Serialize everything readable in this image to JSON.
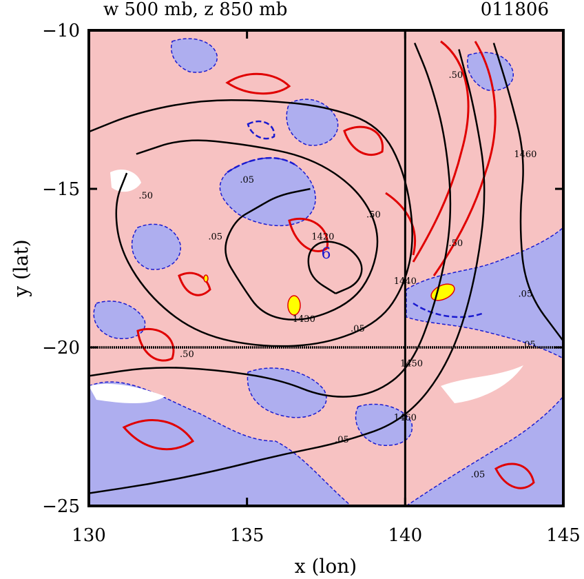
{
  "header": {
    "left_title": "w 500 mb, z 850 mb",
    "right_title": "011806"
  },
  "chart_data": {
    "type": "contour",
    "xlabel": "x (lon)",
    "ylabel": "y (lat)",
    "xlim": [
      130,
      145
    ],
    "ylim": [
      -25,
      -10
    ],
    "xticks": [
      130,
      135,
      140,
      145
    ],
    "yticks": [
      -10,
      -15,
      -20,
      -25
    ],
    "crosshair": {
      "lon": 140,
      "lat": -20
    },
    "colors": {
      "ascent_fill": "#f7c2c2",
      "descent_fill": "#aeaeef",
      "strong_ascent_fill": "#ffff00",
      "w_contour_positive": "#e00000",
      "w_contour_negative": "#1a1ad0",
      "z_contour": "#000000"
    },
    "z850_contours": [
      {
        "level": 1420,
        "points": [
          [
            137.8,
            -18.3
          ],
          [
            138.5,
            -18.0
          ],
          [
            138.7,
            -17.4
          ],
          [
            138.2,
            -16.8
          ],
          [
            137.4,
            -16.6
          ],
          [
            136.9,
            -17.0
          ],
          [
            137.0,
            -17.8
          ],
          [
            137.8,
            -18.3
          ]
        ]
      },
      {
        "level": 1430,
        "points": [
          [
            131.5,
            -13.9
          ],
          [
            133.0,
            -13.4
          ],
          [
            135.0,
            -13.6
          ],
          [
            137.0,
            -14.0
          ],
          [
            138.5,
            -15.0
          ],
          [
            139.2,
            -16.3
          ],
          [
            139.0,
            -17.6
          ],
          [
            138.3,
            -18.6
          ],
          [
            136.8,
            -19.2
          ],
          [
            135.5,
            -19.0
          ],
          [
            134.8,
            -18.0
          ],
          [
            134.2,
            -17.0
          ],
          [
            134.6,
            -16.0
          ],
          [
            135.3,
            -15.6
          ],
          [
            136.0,
            -15.2
          ],
          [
            137.0,
            -15.0
          ]
        ]
      },
      {
        "level": 1440,
        "points": [
          [
            130.0,
            -13.2
          ],
          [
            131.5,
            -12.6
          ],
          [
            133.5,
            -12.2
          ],
          [
            135.5,
            -12.2
          ],
          [
            137.5,
            -12.4
          ],
          [
            139.2,
            -13.0
          ],
          [
            140.0,
            -14.5
          ],
          [
            140.3,
            -16.5
          ],
          [
            140.0,
            -18.0
          ],
          [
            139.2,
            -19.2
          ],
          [
            137.5,
            -19.9
          ],
          [
            135.5,
            -20.0
          ],
          [
            133.5,
            -19.6
          ],
          [
            132.0,
            -18.5
          ],
          [
            131.0,
            -17.0
          ],
          [
            130.8,
            -15.5
          ],
          [
            131.2,
            -14.5
          ]
        ]
      },
      {
        "level": 1450,
        "points": [
          [
            130.0,
            -20.9
          ],
          [
            132.0,
            -20.6
          ],
          [
            134.0,
            -20.7
          ],
          [
            136.0,
            -21.0
          ],
          [
            137.5,
            -21.6
          ],
          [
            139.0,
            -21.5
          ],
          [
            140.2,
            -20.6
          ],
          [
            141.0,
            -18.5
          ],
          [
            141.5,
            -16.0
          ],
          [
            141.3,
            -13.5
          ],
          [
            140.8,
            -11.6
          ],
          [
            140.3,
            -10.4
          ]
        ]
      },
      {
        "level": 1460,
        "points": [
          [
            130.0,
            -24.6
          ],
          [
            132.0,
            -24.3
          ],
          [
            134.0,
            -23.9
          ],
          [
            136.0,
            -23.4
          ],
          [
            138.0,
            -23.0
          ],
          [
            140.0,
            -22.3
          ],
          [
            141.4,
            -20.5
          ],
          [
            142.2,
            -18.0
          ],
          [
            142.6,
            -15.0
          ],
          [
            142.2,
            -12.5
          ],
          [
            141.7,
            -10.6
          ]
        ]
      },
      {
        "level": 1460,
        "points": [
          [
            145.0,
            -19.8
          ],
          [
            143.8,
            -18.2
          ],
          [
            143.6,
            -16.0
          ],
          [
            143.8,
            -14.0
          ],
          [
            143.3,
            -12.0
          ],
          [
            142.8,
            -10.4
          ]
        ]
      }
    ],
    "w500_labels": [
      {
        "text": ".05",
        "lon": 135.0,
        "lat": -14.8
      },
      {
        "text": ".05",
        "lon": 134.0,
        "lat": -16.6
      },
      {
        "text": ".50",
        "lon": 133.1,
        "lat": -20.3
      },
      {
        "text": ".05",
        "lon": 138.5,
        "lat": -19.5
      },
      {
        "text": ".05",
        "lon": 143.8,
        "lat": -18.4
      },
      {
        "text": ".05",
        "lon": 143.9,
        "lat": -20.0
      },
      {
        "text": ".05",
        "lon": 138.0,
        "lat": -23.0
      },
      {
        "text": ".05",
        "lon": 142.3,
        "lat": -24.1
      },
      {
        "text": ".50",
        "lon": 139.0,
        "lat": -15.9
      },
      {
        "text": ".50",
        "lon": 141.6,
        "lat": -16.8
      },
      {
        "text": ".50",
        "lon": 141.6,
        "lat": -11.5
      },
      {
        "text": ".50",
        "lon": 131.8,
        "lat": -15.3
      }
    ],
    "vorticity_marker": {
      "text": "6",
      "lon": 137.5,
      "lat": -17.2
    }
  }
}
